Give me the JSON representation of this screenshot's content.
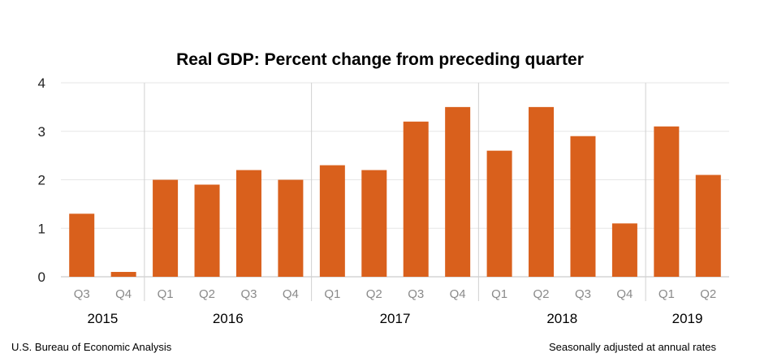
{
  "footer": {
    "source": "U.S. Bureau of Economic Analysis",
    "note": "Seasonally adjusted at annual rates"
  },
  "colors": {
    "bar": "#D9601C",
    "grid": "#e6e6e6",
    "separator": "#d0d0d0"
  },
  "chart_data": {
    "type": "bar",
    "title": "Real GDP:  Percent change from preceding quarter",
    "xlabel": "",
    "ylabel": "",
    "ylim": [
      0,
      4
    ],
    "yticks": [
      0,
      1,
      2,
      3,
      4
    ],
    "grid": true,
    "categories": [
      "Q3",
      "Q4",
      "Q1",
      "Q2",
      "Q3",
      "Q4",
      "Q1",
      "Q2",
      "Q3",
      "Q4",
      "Q1",
      "Q2",
      "Q3",
      "Q4",
      "Q1",
      "Q2"
    ],
    "values": [
      1.3,
      0.1,
      2.0,
      1.9,
      2.2,
      2.0,
      2.3,
      2.2,
      3.2,
      3.5,
      2.6,
      3.5,
      2.9,
      1.1,
      3.1,
      2.1
    ],
    "year_groups": [
      {
        "label": "2015",
        "count": 2
      },
      {
        "label": "2016",
        "count": 4
      },
      {
        "label": "2017",
        "count": 4
      },
      {
        "label": "2018",
        "count": 4
      },
      {
        "label": "2019",
        "count": 2
      }
    ]
  }
}
